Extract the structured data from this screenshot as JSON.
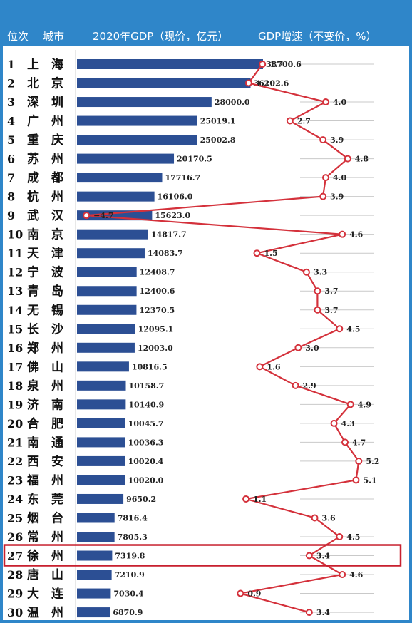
{
  "header": {
    "rank_label": "位次",
    "city_label": "城市",
    "gdp_label": "2020年GDP（现价，亿元）",
    "growth_label": "GDP增速（不变价，%）"
  },
  "colors": {
    "background": "#2f86c9",
    "bar": "#2c4f94",
    "line": "#d4313b",
    "highlight_box": "#c8202f"
  },
  "chart_data": {
    "type": "bar",
    "highlighted_rank": 27,
    "categories": [
      "上 海",
      "北 京",
      "深 圳",
      "广 州",
      "重 庆",
      "苏 州",
      "成 都",
      "杭 州",
      "武 汉",
      "南 京",
      "天 津",
      "宁 波",
      "青 岛",
      "无 锡",
      "长 沙",
      "郑 州",
      "佛 山",
      "泉 州",
      "济 南",
      "合 肥",
      "南 通",
      "西 安",
      "福 州",
      "东 莞",
      "烟 台",
      "常 州",
      "徐 州",
      "唐 山",
      "大 连",
      "温 州"
    ],
    "series": [
      {
        "type": "bar",
        "values": [
          38700.6,
          36102.6,
          28000.0,
          25019.1,
          25002.8,
          20170.5,
          17716.7,
          16106.0,
          15623.0,
          14817.7,
          14083.7,
          12408.7,
          12400.6,
          12370.5,
          12095.1,
          12003.0,
          10816.5,
          10158.7,
          10140.9,
          10045.7,
          10036.3,
          10020.4,
          10020.0,
          9650.2,
          7816.4,
          7805.3,
          7319.8,
          7210.9,
          7030.4,
          6870.9
        ],
        "labels": [
          "38700.6",
          "36102.6",
          "28000.0",
          "25019.1",
          "25002.8",
          "20170.5",
          "17716.7",
          "16106.0",
          "15623.0",
          "14817.7",
          "14083.7",
          "12408.7",
          "12400.6",
          "12370.5",
          "12095.1",
          "12003.0",
          "10816.5",
          "10158.7",
          "10140.9",
          "10045.7",
          "10036.3",
          "10020.4",
          "10020.0",
          "9650.2",
          "7816.4",
          "7805.3",
          "7319.8",
          "7210.9",
          "7030.4",
          "6870.9"
        ]
      },
      {
        "type": "line",
        "values": [
          1.7,
          1.2,
          4.0,
          2.7,
          3.9,
          4.8,
          4.0,
          3.9,
          -4.7,
          4.6,
          1.5,
          3.3,
          3.7,
          3.7,
          4.5,
          3.0,
          1.6,
          2.9,
          4.9,
          4.3,
          4.7,
          5.2,
          5.1,
          1.1,
          3.6,
          4.5,
          3.4,
          4.6,
          0.9,
          3.4
        ],
        "labels": [
          "1.7",
          "1.2",
          "4.0",
          "2.7",
          "3.9",
          "4.8",
          "4.0",
          "3.9",
          "−4.7",
          "4.6",
          "1.5",
          "3.3",
          "3.7",
          "3.7",
          "4.5",
          "3.0",
          "1.6",
          "2.9",
          "4.9",
          "4.3",
          "4.7",
          "5.2",
          "5.1",
          "1.1",
          "3.6",
          "4.5",
          "3.4",
          "4.6",
          "0.9",
          "3.4"
        ]
      }
    ]
  }
}
